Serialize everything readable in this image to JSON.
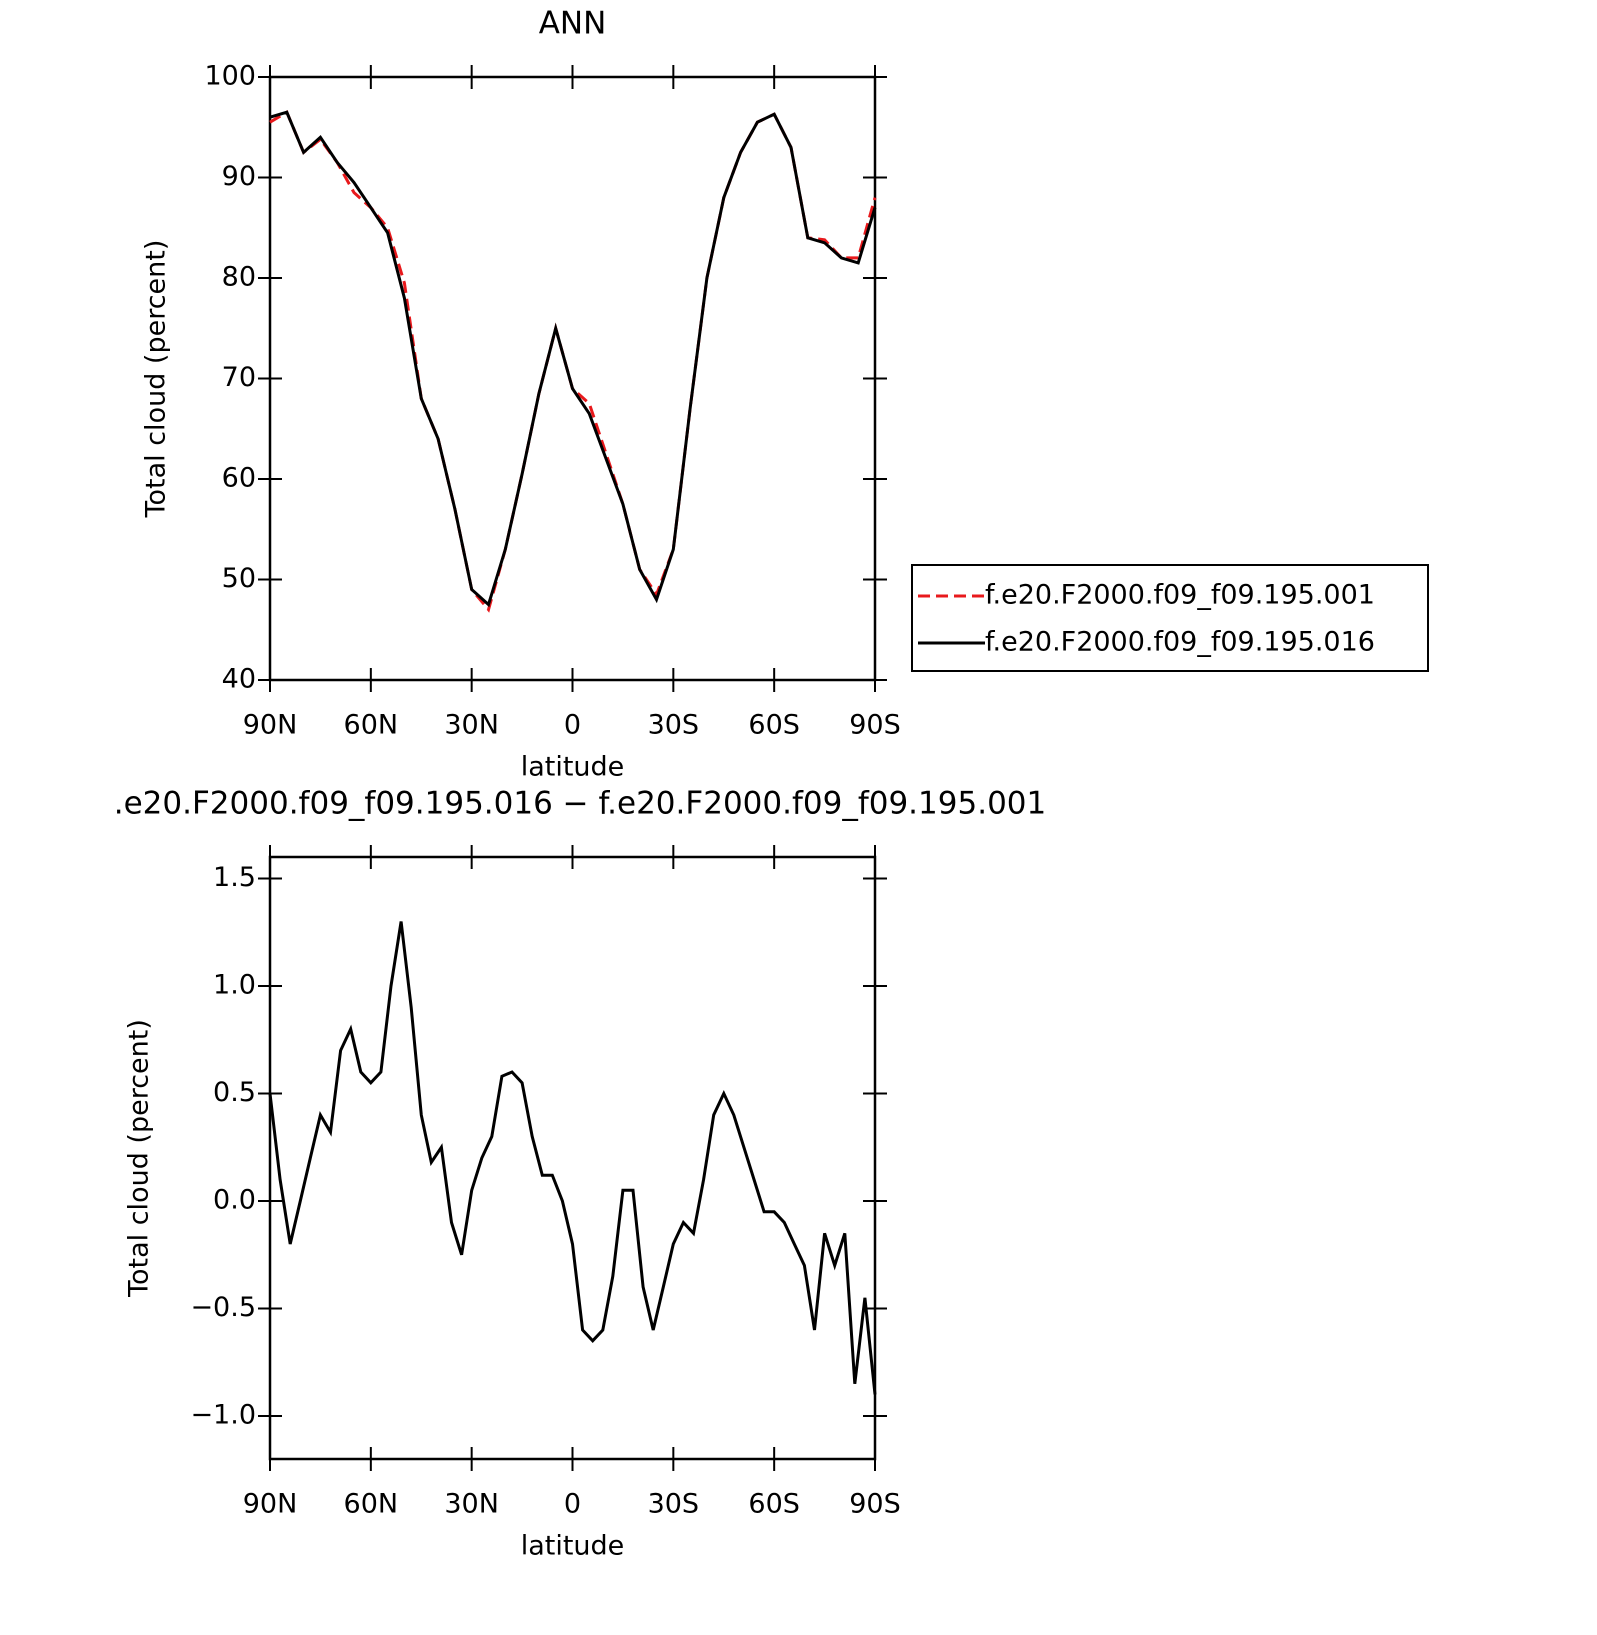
{
  "chart_data": [
    {
      "type": "line",
      "title": "ANN",
      "xlabel": "latitude",
      "ylabel": "Total cloud (percent)",
      "x": [
        90,
        85,
        80,
        75,
        70,
        65,
        60,
        55,
        50,
        45,
        40,
        35,
        30,
        25,
        20,
        15,
        10,
        5,
        0,
        -5,
        -10,
        -15,
        -20,
        -25,
        -30,
        -35,
        -40,
        -45,
        -50,
        -55,
        -60,
        -65,
        -70,
        -75,
        -80,
        -85,
        -90
      ],
      "xlim": [
        90,
        -90
      ],
      "xticks": [
        {
          "value": 90,
          "label": "90N"
        },
        {
          "value": 60,
          "label": "60N"
        },
        {
          "value": 30,
          "label": "30N"
        },
        0,
        {
          "value": -30,
          "label": "30S"
        },
        {
          "value": -60,
          "label": "60S"
        },
        {
          "value": -90,
          "label": "90S"
        }
      ],
      "ylim": [
        40,
        100
      ],
      "yticks": [
        40,
        50,
        60,
        70,
        80,
        90,
        100
      ],
      "legend": "outside-right",
      "series": [
        {
          "name": "f.e20.F2000.f09_f09.195.001",
          "color": "#e8191c",
          "style": "dashed",
          "values": [
            95.5,
            96.5,
            92.5,
            93.8,
            91.5,
            88.5,
            87,
            85,
            79.5,
            68,
            64,
            57,
            49,
            47,
            53,
            60.5,
            68.5,
            75,
            69,
            67.5,
            62.5,
            57.5,
            51,
            48.5,
            53,
            67,
            80,
            88,
            92.5,
            95.5,
            96.3,
            93,
            84,
            83.8,
            82,
            82,
            88
          ]
        },
        {
          "name": "f.e20.F2000.f09_f09.195.016",
          "color": "#000000",
          "style": "solid",
          "values": [
            96,
            96.5,
            92.5,
            94,
            91.5,
            89.5,
            87,
            84.5,
            78,
            68,
            64,
            57,
            49,
            47.5,
            53,
            60.5,
            68.5,
            75,
            69,
            66.5,
            62,
            57.5,
            51,
            48,
            53,
            67,
            80,
            88,
            92.5,
            95.5,
            96.3,
            93,
            84,
            83.5,
            82,
            81.5,
            87
          ]
        }
      ]
    },
    {
      "type": "line",
      "title": ".e20.F2000.f09_f09.195.016 − f.e20.F2000.f09_f09.195.001",
      "xlabel": "latitude",
      "ylabel": "Total cloud (percent)",
      "x": [
        90,
        87,
        84,
        81,
        78,
        75,
        72,
        69,
        66,
        63,
        60,
        57,
        54,
        51,
        48,
        45,
        42,
        39,
        36,
        33,
        30,
        27,
        24,
        21,
        18,
        15,
        12,
        9,
        6,
        3,
        0,
        -3,
        -6,
        -9,
        -12,
        -15,
        -18,
        -21,
        -24,
        -27,
        -30,
        -33,
        -36,
        -39,
        -42,
        -45,
        -48,
        -51,
        -54,
        -57,
        -60,
        -63,
        -66,
        -69,
        -72,
        -75,
        -78,
        -81,
        -84,
        -87,
        -90
      ],
      "xlim": [
        90,
        -90
      ],
      "xticks": [
        {
          "value": 90,
          "label": "90N"
        },
        {
          "value": 60,
          "label": "60N"
        },
        {
          "value": 30,
          "label": "30N"
        },
        0,
        {
          "value": -30,
          "label": "30S"
        },
        {
          "value": -60,
          "label": "60S"
        },
        {
          "value": -90,
          "label": "90S"
        }
      ],
      "ylim": [
        -1.2,
        1.6
      ],
      "yticks": [
        {
          "value": -1,
          "label": "−1.0"
        },
        {
          "value": -0.5,
          "label": "−0.5"
        },
        {
          "value": 0,
          "label": "0.0"
        },
        {
          "value": 0.5,
          "label": "0.5"
        },
        {
          "value": 1,
          "label": "1.0"
        },
        {
          "value": 1.5,
          "label": "1.5"
        }
      ],
      "series": [
        {
          "color": "#000000",
          "style": "solid",
          "values": [
            0.5,
            0.1,
            -0.2,
            0,
            0.2,
            0.4,
            0.32,
            0.7,
            0.8,
            0.6,
            0.55,
            0.6,
            1,
            1.3,
            0.9,
            0.4,
            0.18,
            0.25,
            -0.1,
            -0.25,
            0.05,
            0.2,
            0.3,
            0.58,
            0.6,
            0.55,
            0.3,
            0.12,
            0.12,
            0,
            -0.2,
            -0.6,
            -0.65,
            -0.6,
            -0.35,
            0.05,
            0.05,
            -0.4,
            -0.6,
            -0.4,
            -0.2,
            -0.1,
            -0.15,
            0.1,
            0.4,
            0.5,
            0.4,
            0.25,
            0.1,
            -0.05,
            -0.05,
            -0.1,
            -0.2,
            -0.3,
            -0.6,
            -0.15,
            -0.3,
            -0.15,
            -0.85,
            -0.45,
            -0.9
          ]
        }
      ]
    }
  ]
}
